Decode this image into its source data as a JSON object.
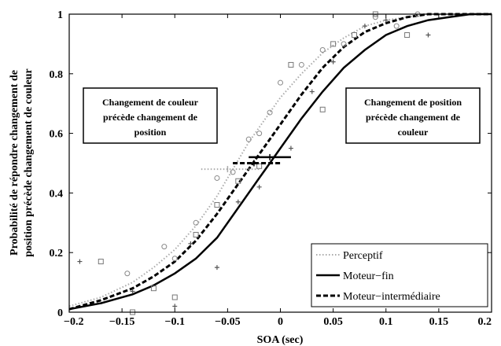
{
  "chart_data": {
    "type": "line",
    "xlabel": "SOA (sec)",
    "ylabel_lines": [
      "Probabilité de répondre changement de",
      "position précède changement de couleur"
    ],
    "xlim": [
      -0.2,
      0.2
    ],
    "ylim": [
      0,
      1
    ],
    "x_ticks": [
      -0.2,
      -0.15,
      -0.1,
      -0.05,
      0,
      0.05,
      0.1,
      0.15,
      0.2
    ],
    "x_tick_labels": [
      "−0.2",
      "−0.15",
      "−0.1",
      "−0.05",
      "0",
      "0.05",
      "0.1",
      "0.15",
      "0.2"
    ],
    "y_ticks": [
      0,
      0.2,
      0.4,
      0.6,
      0.8,
      1
    ],
    "y_tick_labels": [
      "0",
      "0.2",
      "0.4",
      "0.6",
      "0.8",
      "1"
    ],
    "grid": false,
    "legend_position": "bottom-right",
    "series": [
      {
        "name": "Perceptif",
        "color": "#aaaaaa",
        "line_style": "dotted",
        "marker": "diamond",
        "curve_x": [
          -0.2,
          -0.17,
          -0.14,
          -0.12,
          -0.1,
          -0.08,
          -0.06,
          -0.05,
          -0.04,
          -0.03,
          -0.02,
          0,
          0.02,
          0.04,
          0.06,
          0.08,
          0.1,
          0.12,
          0.14,
          0.16,
          0.2
        ],
        "curve_y": [
          0.02,
          0.05,
          0.1,
          0.15,
          0.21,
          0.29,
          0.39,
          0.45,
          0.51,
          0.57,
          0.62,
          0.72,
          0.8,
          0.87,
          0.92,
          0.96,
          0.98,
          0.99,
          1,
          1,
          1
        ],
        "points_x": [
          -0.145,
          -0.11,
          -0.1,
          -0.08,
          -0.06,
          -0.045,
          -0.03,
          -0.02,
          -0.01,
          0,
          0.02,
          0.04,
          0.06,
          0.09,
          0.11,
          0.13
        ],
        "points_y": [
          0.13,
          0.22,
          0.18,
          0.3,
          0.45,
          0.47,
          0.58,
          0.6,
          0.67,
          0.77,
          0.83,
          0.88,
          0.9,
          0.99,
          0.96,
          1
        ]
      },
      {
        "name": "Moteur−fin",
        "color": "#000000",
        "line_style": "solid",
        "marker": "plus",
        "curve_x": [
          -0.2,
          -0.17,
          -0.14,
          -0.12,
          -0.1,
          -0.08,
          -0.06,
          -0.04,
          -0.02,
          -0.01,
          0,
          0.02,
          0.04,
          0.06,
          0.08,
          0.1,
          0.12,
          0.14,
          0.16,
          0.18,
          0.2
        ],
        "curve_y": [
          0.01,
          0.03,
          0.06,
          0.09,
          0.13,
          0.18,
          0.25,
          0.35,
          0.45,
          0.5,
          0.55,
          0.65,
          0.74,
          0.82,
          0.88,
          0.93,
          0.96,
          0.98,
          0.99,
          1,
          1
        ],
        "points_x": [
          -0.19,
          -0.14,
          -0.1,
          -0.085,
          -0.06,
          -0.04,
          -0.02,
          0.01,
          0.03,
          0.05,
          0.08,
          0.1,
          0.14
        ],
        "points_y": [
          0.17,
          0.07,
          0.02,
          0.23,
          0.15,
          0.37,
          0.42,
          0.55,
          0.74,
          0.84,
          0.96,
          0.98,
          0.93
        ]
      },
      {
        "name": "Moteur−intermédiaire",
        "color": "#000000",
        "line_style": "dashed",
        "marker": "square",
        "curve_x": [
          -0.2,
          -0.17,
          -0.14,
          -0.12,
          -0.1,
          -0.08,
          -0.06,
          -0.04,
          -0.03,
          -0.02,
          0,
          0.02,
          0.04,
          0.06,
          0.08,
          0.1,
          0.12,
          0.14,
          0.16,
          0.2
        ],
        "curve_y": [
          0.01,
          0.04,
          0.08,
          0.12,
          0.17,
          0.24,
          0.33,
          0.43,
          0.48,
          0.53,
          0.63,
          0.73,
          0.82,
          0.89,
          0.94,
          0.97,
          0.99,
          1,
          1,
          1
        ],
        "points_x": [
          -0.17,
          -0.14,
          -0.12,
          -0.1,
          -0.08,
          -0.06,
          -0.04,
          -0.02,
          0.01,
          0.04,
          0.05,
          0.07,
          0.09,
          0.12
        ],
        "points_y": [
          0.17,
          0.0,
          0.08,
          0.05,
          0.26,
          0.36,
          0.44,
          0.49,
          0.83,
          0.68,
          0.9,
          0.93,
          1,
          0.93
        ]
      }
    ],
    "thresholds": [
      {
        "series": "Perceptif",
        "x": -0.05,
        "y": 0.48,
        "err_low": -0.075,
        "err_high": -0.02
      },
      {
        "series": "Moteur−intermédiaire",
        "x": -0.025,
        "y": 0.5,
        "err_low": -0.045,
        "err_high": 0.0
      },
      {
        "series": "Moteur−fin",
        "x": -0.01,
        "y": 0.52,
        "err_low": -0.03,
        "err_high": 0.01
      }
    ],
    "annotations": [
      {
        "lines": [
          "Changement de couleur",
          "précède changement de",
          "position"
        ]
      },
      {
        "lines": [
          "Changement de position",
          "précède changement de",
          "couleur"
        ]
      }
    ]
  }
}
